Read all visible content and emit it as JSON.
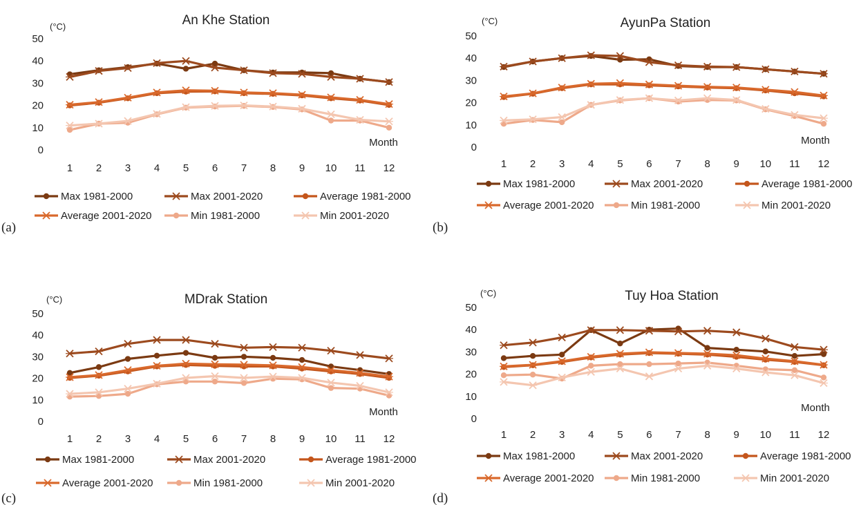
{
  "chart_data": [
    {
      "type": "line",
      "panel_label": "(a)",
      "title": "An Khe Station",
      "unit_label": "(°C)",
      "xlabel": "Month",
      "categories": [
        "1",
        "2",
        "3",
        "4",
        "5",
        "6",
        "7",
        "8",
        "9",
        "10",
        "11",
        "12"
      ],
      "ylim": [
        0,
        50
      ],
      "yticks": [
        0,
        10,
        20,
        30,
        40,
        50
      ],
      "series": [
        {
          "name": "Max 1981-2000",
          "marker": "dot",
          "color": "#7b3a12",
          "values": [
            34,
            35.8,
            37.2,
            38.8,
            36.5,
            38.8,
            35.8,
            34.8,
            34.8,
            34.5,
            32,
            30.5
          ]
        },
        {
          "name": "Max 2001-2020",
          "marker": "x",
          "color": "#9c4a1e",
          "values": [
            32.8,
            35.5,
            36.8,
            39,
            40,
            37,
            35.8,
            34.5,
            34.2,
            32.8,
            32,
            30.5
          ]
        },
        {
          "name": "Average 1981-2000",
          "marker": "dot",
          "color": "#c4561c",
          "values": [
            20,
            21.2,
            23.2,
            25.5,
            26.2,
            26.3,
            25.5,
            25.2,
            24.5,
            23.2,
            22.2,
            20.2
          ]
        },
        {
          "name": "Average 2001-2020",
          "marker": "x",
          "color": "#d9692c",
          "values": [
            20.3,
            21.5,
            23.5,
            25.8,
            26.8,
            26.6,
            25.8,
            25.5,
            24.8,
            23.6,
            22.5,
            20.6
          ]
        },
        {
          "name": "Min 1981-2000",
          "marker": "dot",
          "color": "#eea98a",
          "values": [
            9,
            11.8,
            12.2,
            16,
            19,
            19.5,
            19.8,
            19.3,
            18.2,
            13.2,
            13.2,
            10
          ]
        },
        {
          "name": "Min 2001-2020",
          "marker": "x",
          "color": "#f4c6b0",
          "values": [
            11,
            11.8,
            13,
            16.2,
            19.2,
            19.8,
            20,
            19.5,
            18.5,
            16,
            13.5,
            12.8
          ]
        }
      ]
    },
    {
      "type": "line",
      "panel_label": "(b)",
      "title": "AyunPa Station",
      "unit_label": "(°C)",
      "xlabel": "Month",
      "categories": [
        "1",
        "2",
        "3",
        "4",
        "5",
        "6",
        "7",
        "8",
        "9",
        "10",
        "11",
        "12"
      ],
      "ylim": [
        0,
        50
      ],
      "yticks": [
        0,
        10,
        20,
        30,
        40,
        50
      ],
      "series": [
        {
          "name": "Max 1981-2000",
          "marker": "dot",
          "color": "#7b3a12",
          "values": [
            36,
            38.5,
            40,
            41,
            39.3,
            39.5,
            36.5,
            36,
            36,
            35,
            34,
            33
          ]
        },
        {
          "name": "Max 2001-2020",
          "marker": "x",
          "color": "#9c4a1e",
          "values": [
            36.2,
            38.5,
            40,
            41.3,
            41,
            38.2,
            36.8,
            36.2,
            36,
            35,
            34,
            33
          ]
        },
        {
          "name": "Average 1981-2000",
          "marker": "dot",
          "color": "#c4561c",
          "values": [
            22.5,
            24,
            26.5,
            28.2,
            28.2,
            27.8,
            27.3,
            26.8,
            26.5,
            25.5,
            24.2,
            22.8
          ]
        },
        {
          "name": "Average 2001-2020",
          "marker": "x",
          "color": "#d9692c",
          "values": [
            22.8,
            24.2,
            26.8,
            28.5,
            28.8,
            28.2,
            27.6,
            27.1,
            26.8,
            25.8,
            24.8,
            23.2
          ]
        },
        {
          "name": "Min 1981-2000",
          "marker": "dot",
          "color": "#eea98a",
          "values": [
            10.5,
            12.2,
            11.2,
            19,
            21,
            22,
            20.5,
            21.2,
            21,
            17,
            14,
            10.5
          ]
        },
        {
          "name": "Min 2001-2020",
          "marker": "x",
          "color": "#f4c6b0",
          "values": [
            12,
            12.5,
            13.5,
            19,
            21.2,
            22,
            21,
            22,
            21.2,
            17.2,
            14.5,
            13
          ]
        }
      ]
    },
    {
      "type": "line",
      "panel_label": "(c)",
      "title": "MDrak Station",
      "unit_label": "(°C)",
      "xlabel": "Month",
      "categories": [
        "1",
        "2",
        "3",
        "4",
        "5",
        "6",
        "7",
        "8",
        "9",
        "10",
        "11",
        "12"
      ],
      "ylim": [
        0,
        50
      ],
      "yticks": [
        0,
        10,
        20,
        30,
        40,
        50
      ],
      "series": [
        {
          "name": "Max 1981-2000",
          "marker": "dot",
          "color": "#7b3a12",
          "values": [
            22.5,
            25.2,
            29,
            30.5,
            31.8,
            29.5,
            30,
            29.5,
            28.5,
            25.5,
            23.8,
            22
          ]
        },
        {
          "name": "Max 2001-2020",
          "marker": "x",
          "color": "#9c4a1e",
          "values": [
            31.5,
            32.5,
            36,
            37.8,
            37.8,
            36,
            34.2,
            34.5,
            34.2,
            32.8,
            30.8,
            29.2
          ]
        },
        {
          "name": "Average 1981-2000",
          "marker": "dot",
          "color": "#c4561c",
          "values": [
            20.2,
            21.2,
            23.2,
            25.5,
            26.2,
            25.8,
            25.5,
            25.5,
            24.5,
            23.2,
            22,
            20.2
          ]
        },
        {
          "name": "Average 2001-2020",
          "marker": "x",
          "color": "#d9692c",
          "values": [
            20.5,
            21.5,
            23.8,
            25.8,
            26.8,
            26.5,
            26.3,
            26,
            25.2,
            23.8,
            22.5,
            20.8
          ]
        },
        {
          "name": "Min 1981-2000",
          "marker": "dot",
          "color": "#eea98a",
          "values": [
            11.5,
            11.8,
            12.8,
            17.2,
            18.5,
            18.5,
            17.8,
            19.8,
            19.5,
            15.5,
            15.2,
            12
          ]
        },
        {
          "name": "Min 2001-2020",
          "marker": "x",
          "color": "#f4c6b0",
          "values": [
            12.8,
            13.5,
            15.2,
            17.5,
            20.2,
            21,
            20.2,
            20.8,
            20.2,
            18,
            16.5,
            13.5
          ]
        }
      ]
    },
    {
      "type": "line",
      "panel_label": "(d)",
      "title": "Tuy Hoa Station",
      "unit_label": "(°C)",
      "xlabel": "Month",
      "categories": [
        "1",
        "2",
        "3",
        "4",
        "5",
        "6",
        "7",
        "8",
        "9",
        "10",
        "11",
        "12"
      ],
      "ylim": [
        0,
        50
      ],
      "yticks": [
        0,
        10,
        20,
        30,
        40,
        50
      ],
      "series": [
        {
          "name": "Max 1981-2000",
          "marker": "dot",
          "color": "#7b3a12",
          "values": [
            27.2,
            28.2,
            28.8,
            39.8,
            33.8,
            40,
            40.5,
            31.8,
            31,
            30.2,
            28.2,
            29
          ]
        },
        {
          "name": "Max 2001-2020",
          "marker": "x",
          "color": "#9c4a1e",
          "values": [
            33,
            34.2,
            36.5,
            39.8,
            39.8,
            39.5,
            39.2,
            39.5,
            38.8,
            36,
            32.2,
            31
          ]
        },
        {
          "name": "Average 1981-2000",
          "marker": "dot",
          "color": "#c4561c",
          "values": [
            23.2,
            24,
            25.5,
            27.5,
            28.8,
            29.5,
            29.2,
            28.8,
            27.8,
            26.5,
            25.5,
            24
          ]
        },
        {
          "name": "Average 2001-2020",
          "marker": "x",
          "color": "#d9692c",
          "values": [
            23.5,
            24.2,
            25.8,
            27.8,
            29.2,
            29.8,
            29.5,
            29.2,
            28.5,
            27,
            25.8,
            24.2
          ]
        },
        {
          "name": "Min 1981-2000",
          "marker": "dot",
          "color": "#eea98a",
          "values": [
            19.5,
            19.8,
            18,
            23.8,
            24.5,
            24.5,
            24.8,
            25.2,
            23.8,
            22.2,
            21.8,
            18.5
          ]
        },
        {
          "name": "Min 2001-2020",
          "marker": "x",
          "color": "#f4c6b0",
          "values": [
            16.5,
            15,
            18.5,
            21,
            22.5,
            19,
            22.5,
            23.8,
            22.5,
            20.8,
            19.5,
            16
          ]
        }
      ]
    }
  ]
}
